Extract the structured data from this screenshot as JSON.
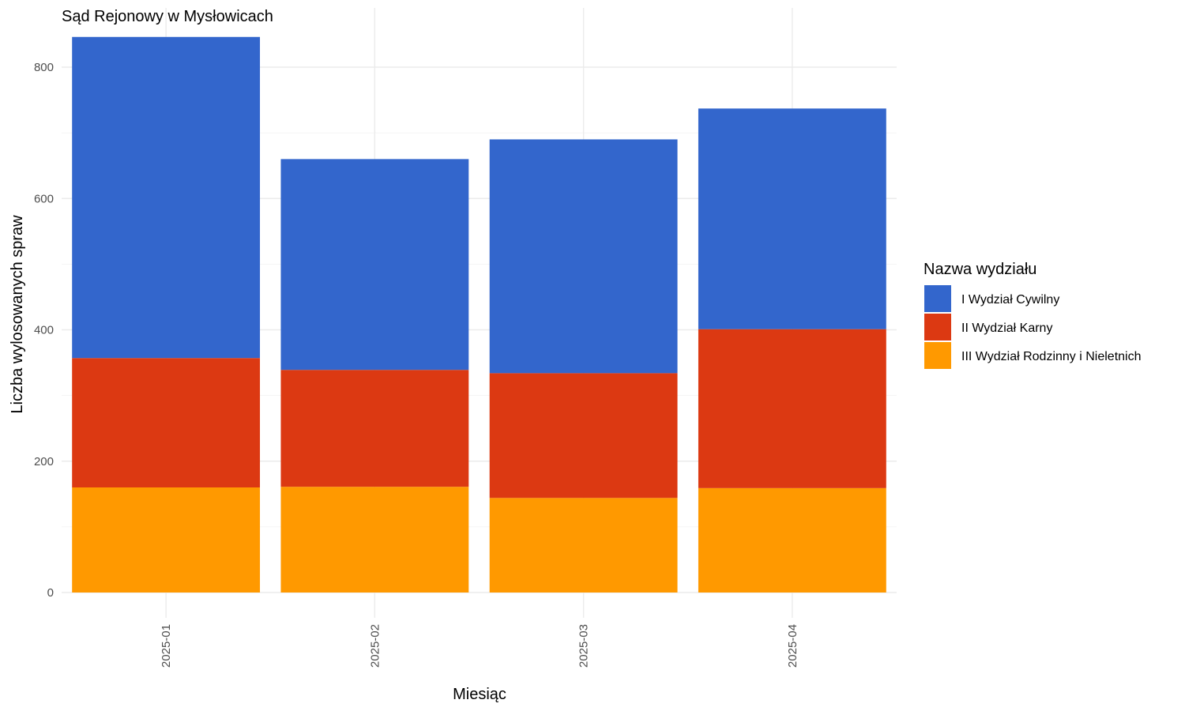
{
  "chart_data": {
    "type": "bar",
    "stacked": true,
    "title": "Sąd Rejonowy w Mysłowicach",
    "xlabel": "Miesiąc",
    "ylabel": "Liczba wylosowanych spraw",
    "categories": [
      "2025-01",
      "2025-02",
      "2025-03",
      "2025-04"
    ],
    "ylim": [
      0,
      850
    ],
    "yticks": [
      0,
      200,
      400,
      600,
      800
    ],
    "grid": true,
    "legend": {
      "title": "Nazwa wydziału",
      "position": "right"
    },
    "series": [
      {
        "name": "III Wydział Rodzinny i Nieletnich",
        "color": "#ff9900",
        "values": [
          160,
          161,
          144,
          159
        ]
      },
      {
        "name": "II Wydział Karny",
        "color": "#dc3912",
        "values": [
          197,
          178,
          190,
          242
        ]
      },
      {
        "name": "I Wydział Cywilny",
        "color": "#3366cc",
        "values": [
          489,
          321,
          356,
          336
        ]
      }
    ],
    "legend_order": [
      "I Wydział Cywilny",
      "II Wydział Karny",
      "III Wydział Rodzinny i Nieletnich"
    ]
  }
}
